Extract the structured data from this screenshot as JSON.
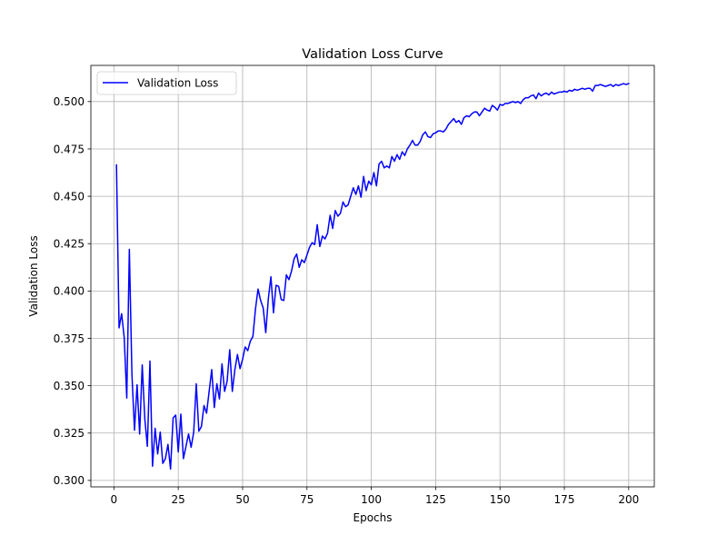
{
  "chart_data": {
    "type": "line",
    "title": "Validation Loss Curve",
    "xlabel": "Epochs",
    "ylabel": "Validation Loss",
    "xlim": [
      -8.95,
      209.95
    ],
    "ylim": [
      0.2966,
      0.5191
    ],
    "grid": true,
    "legend_position": "upper-left",
    "x_ticks": [
      0,
      25,
      50,
      75,
      100,
      125,
      150,
      175,
      200
    ],
    "y_ticks": [
      0.3,
      0.325,
      0.35,
      0.375,
      0.4,
      0.425,
      0.45,
      0.475,
      0.5
    ],
    "x_tick_labels": [
      "0",
      "25",
      "50",
      "75",
      "100",
      "125",
      "150",
      "175",
      "200"
    ],
    "y_tick_labels": [
      "0.300",
      "0.325",
      "0.350",
      "0.375",
      "0.400",
      "0.425",
      "0.450",
      "0.475",
      "0.500"
    ],
    "series": [
      {
        "name": "Validation Loss",
        "color": "#0000ff",
        "x": [
          1,
          2,
          3,
          4,
          5,
          6,
          7,
          8,
          9,
          10,
          11,
          12,
          13,
          14,
          15,
          16,
          17,
          18,
          19,
          20,
          21,
          22,
          23,
          24,
          25,
          26,
          27,
          28,
          29,
          30,
          31,
          32,
          33,
          34,
          35,
          36,
          37,
          38,
          39,
          40,
          41,
          42,
          43,
          44,
          45,
          46,
          47,
          48,
          49,
          50,
          51,
          52,
          53,
          54,
          55,
          56,
          57,
          58,
          59,
          60,
          61,
          62,
          63,
          64,
          65,
          66,
          67,
          68,
          69,
          70,
          71,
          72,
          73,
          74,
          75,
          76,
          77,
          78,
          79,
          80,
          81,
          82,
          83,
          84,
          85,
          86,
          87,
          88,
          89,
          90,
          91,
          92,
          93,
          94,
          95,
          96,
          97,
          98,
          99,
          100,
          101,
          102,
          103,
          104,
          105,
          106,
          107,
          108,
          109,
          110,
          111,
          112,
          113,
          114,
          115,
          116,
          117,
          118,
          119,
          120,
          121,
          122,
          123,
          124,
          125,
          126,
          127,
          128,
          129,
          130,
          131,
          132,
          133,
          134,
          135,
          136,
          137,
          138,
          139,
          140,
          141,
          142,
          143,
          144,
          145,
          146,
          147,
          148,
          149,
          150,
          151,
          152,
          153,
          154,
          155,
          156,
          157,
          158,
          159,
          160,
          161,
          162,
          163,
          164,
          165,
          166,
          167,
          168,
          169,
          170,
          171,
          172,
          173,
          174,
          175,
          176,
          177,
          178,
          179,
          180,
          181,
          182,
          183,
          184,
          185,
          186,
          187,
          188,
          189,
          190,
          191,
          192,
          193,
          194,
          195,
          196,
          197,
          198,
          199,
          200
        ],
        "values": [
          0.4665,
          0.3805,
          0.388,
          0.3755,
          0.3435,
          0.422,
          0.356,
          0.3265,
          0.3505,
          0.3245,
          0.361,
          0.3325,
          0.318,
          0.363,
          0.3075,
          0.3275,
          0.314,
          0.3255,
          0.309,
          0.3115,
          0.319,
          0.306,
          0.333,
          0.3345,
          0.315,
          0.335,
          0.3115,
          0.318,
          0.3245,
          0.3175,
          0.3255,
          0.351,
          0.326,
          0.3285,
          0.3395,
          0.3355,
          0.347,
          0.3585,
          0.3385,
          0.351,
          0.343,
          0.3615,
          0.347,
          0.3525,
          0.369,
          0.347,
          0.3585,
          0.3665,
          0.359,
          0.364,
          0.3705,
          0.3685,
          0.3735,
          0.376,
          0.3905,
          0.401,
          0.395,
          0.391,
          0.378,
          0.396,
          0.4075,
          0.3885,
          0.403,
          0.4025,
          0.3955,
          0.395,
          0.4085,
          0.406,
          0.4105,
          0.417,
          0.4195,
          0.4125,
          0.4165,
          0.415,
          0.419,
          0.423,
          0.4255,
          0.4245,
          0.435,
          0.4235,
          0.429,
          0.4275,
          0.4305,
          0.44,
          0.433,
          0.4425,
          0.4395,
          0.441,
          0.447,
          0.4445,
          0.4455,
          0.45,
          0.4545,
          0.451,
          0.4555,
          0.4495,
          0.4605,
          0.453,
          0.458,
          0.456,
          0.4625,
          0.4555,
          0.467,
          0.4685,
          0.465,
          0.466,
          0.465,
          0.471,
          0.4685,
          0.472,
          0.4695,
          0.4735,
          0.4715,
          0.475,
          0.477,
          0.4795,
          0.477,
          0.477,
          0.479,
          0.4825,
          0.484,
          0.4815,
          0.481,
          0.483,
          0.4835,
          0.4845,
          0.4845,
          0.484,
          0.4855,
          0.488,
          0.4895,
          0.491,
          0.489,
          0.49,
          0.488,
          0.4915,
          0.4925,
          0.492,
          0.4935,
          0.4945,
          0.4945,
          0.4925,
          0.4945,
          0.4965,
          0.4955,
          0.495,
          0.498,
          0.497,
          0.4955,
          0.4985,
          0.498,
          0.499,
          0.499,
          0.4995,
          0.5,
          0.4995,
          0.5,
          0.499,
          0.501,
          0.502,
          0.502,
          0.503,
          0.5035,
          0.5015,
          0.5045,
          0.503,
          0.504,
          0.5045,
          0.5035,
          0.505,
          0.504,
          0.5045,
          0.505,
          0.505,
          0.5055,
          0.505,
          0.506,
          0.5055,
          0.5065,
          0.506,
          0.5065,
          0.507,
          0.5065,
          0.507,
          0.507,
          0.5055,
          0.5085,
          0.5085,
          0.509,
          0.5085,
          0.508,
          0.5085,
          0.509,
          0.508,
          0.509,
          0.5085,
          0.509,
          0.5095,
          0.509,
          0.5095
        ]
      }
    ]
  }
}
